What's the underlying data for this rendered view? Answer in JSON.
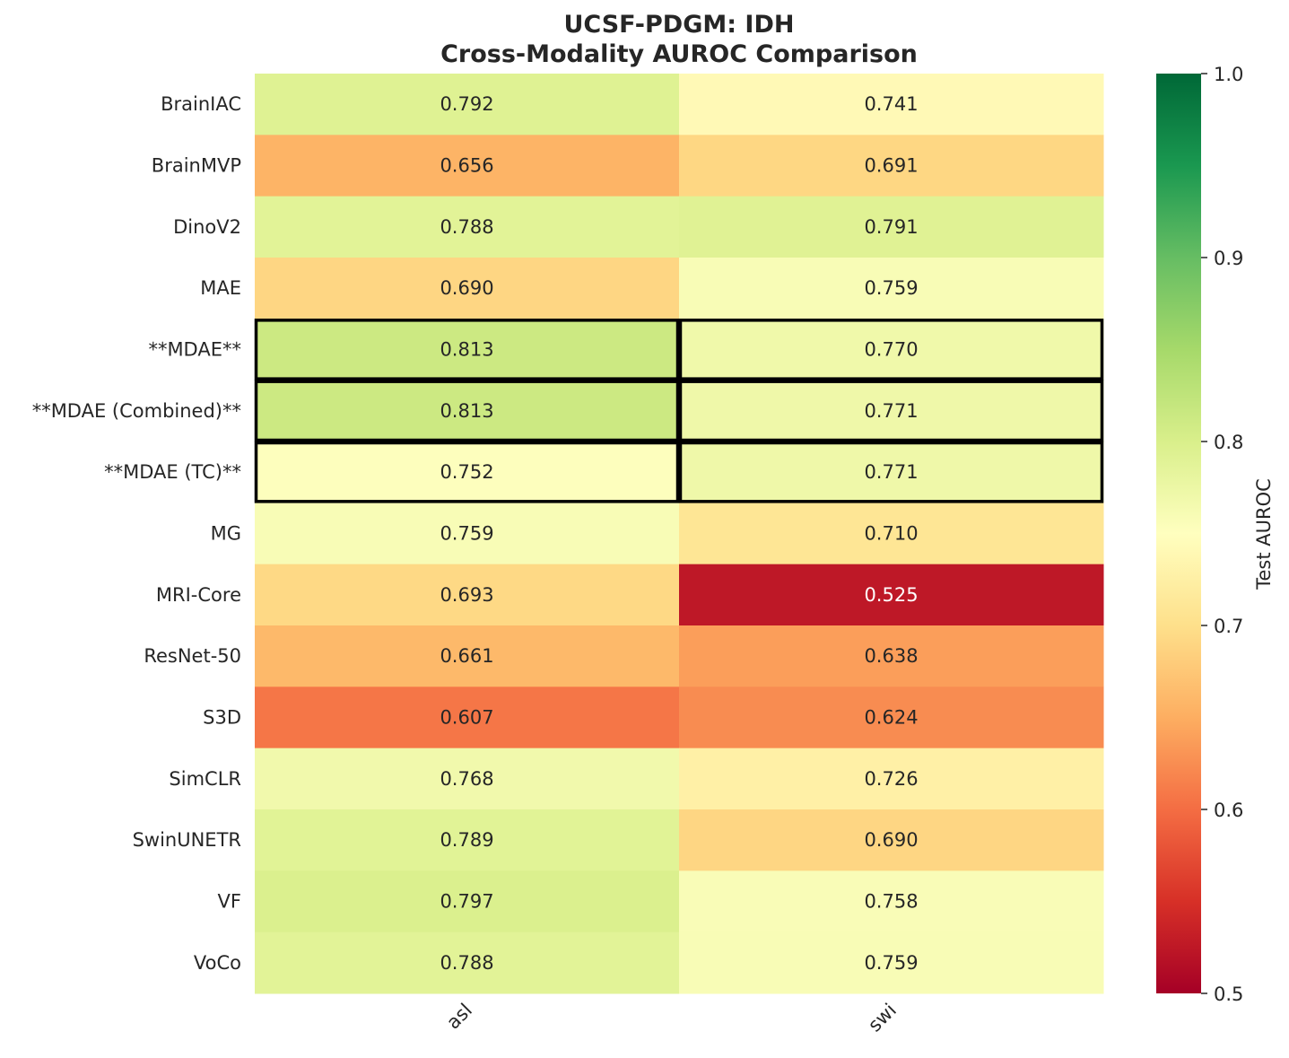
{
  "chart_data": {
    "type": "heatmap",
    "title": "UCSF-PDGM: IDH",
    "subtitle": "Cross-Modality AUROC Comparison",
    "columns": [
      "asl",
      "swi"
    ],
    "rows": [
      "BrainIAC",
      "BrainMVP",
      "DinoV2",
      "MAE",
      "**MDAE**",
      "**MDAE (Combined)**",
      "**MDAE (TC)**",
      "MG",
      "MRI-Core",
      "ResNet-50",
      "S3D",
      "SimCLR",
      "SwinUNETR",
      "VF",
      "VoCo"
    ],
    "values": [
      [
        0.792,
        0.741
      ],
      [
        0.656,
        0.691
      ],
      [
        0.788,
        0.791
      ],
      [
        0.69,
        0.759
      ],
      [
        0.813,
        0.77
      ],
      [
        0.813,
        0.771
      ],
      [
        0.752,
        0.771
      ],
      [
        0.759,
        0.71
      ],
      [
        0.693,
        0.525
      ],
      [
        0.661,
        0.638
      ],
      [
        0.607,
        0.624
      ],
      [
        0.768,
        0.726
      ],
      [
        0.789,
        0.69
      ],
      [
        0.797,
        0.758
      ],
      [
        0.788,
        0.759
      ]
    ],
    "value_labels": [
      [
        "0.792",
        "0.741"
      ],
      [
        "0.656",
        "0.691"
      ],
      [
        "0.788",
        "0.791"
      ],
      [
        "0.690",
        "0.759"
      ],
      [
        "0.813",
        "0.770"
      ],
      [
        "0.813",
        "0.771"
      ],
      [
        "0.752",
        "0.771"
      ],
      [
        "0.759",
        "0.710"
      ],
      [
        "0.693",
        "0.525"
      ],
      [
        "0.661",
        "0.638"
      ],
      [
        "0.607",
        "0.624"
      ],
      [
        "0.768",
        "0.726"
      ],
      [
        "0.789",
        "0.690"
      ],
      [
        "0.797",
        "0.758"
      ],
      [
        "0.788",
        "0.759"
      ]
    ],
    "highlighted_rows": [
      "**MDAE**",
      "**MDAE (Combined)**",
      "**MDAE (TC)**"
    ],
    "colorbar": {
      "label": "Test AUROC",
      "range": [
        0.5,
        1.0
      ],
      "ticks": [
        "0.5",
        "0.6",
        "0.7",
        "0.8",
        "0.9",
        "1.0"
      ],
      "colormap": "RdYlGn"
    },
    "colors": {
      "highlight_border": "#000000",
      "dark_text": "#262626",
      "light_text": "#ffffff"
    }
  }
}
